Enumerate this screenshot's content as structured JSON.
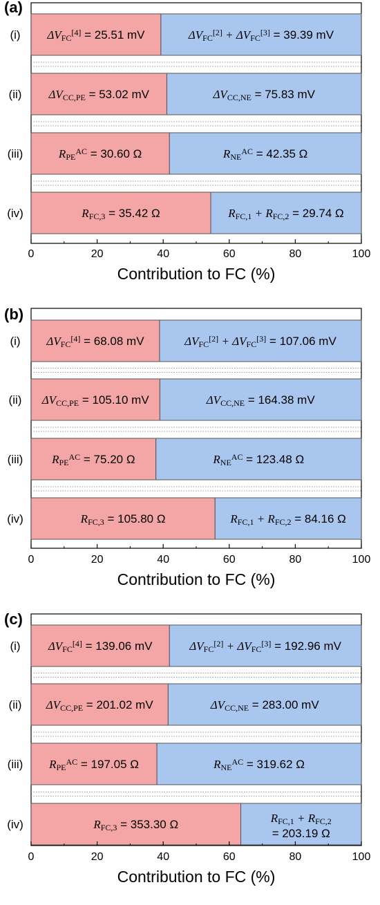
{
  "chart_data": [
    {
      "type": "bar",
      "panel": "(a)",
      "orientation": "horizontal-stacked",
      "categories": [
        "(i)",
        "(ii)",
        "(iii)",
        "(iv)"
      ],
      "xlabel": "Contribution to FC (%)",
      "xlim": [
        0,
        100
      ],
      "xticks": [
        "0",
        "20",
        "40",
        "60",
        "80",
        "100"
      ],
      "colors": {
        "first": "#f4a6a6",
        "second": "#a9c6ee"
      },
      "rows": [
        {
          "first": 39.3,
          "second": 60.7,
          "first_label": [
            [
              "t",
              "ΔV"
            ],
            [
              "sub",
              "FC"
            ],
            [
              "sup",
              "[4]"
            ],
            [
              "t",
              " = 25.51 mV"
            ]
          ],
          "second_label": [
            [
              "t",
              "ΔV"
            ],
            [
              "sub",
              "FC"
            ],
            [
              "sup",
              "[2]"
            ],
            [
              "t",
              " + ΔV"
            ],
            [
              "sub",
              "FC"
            ],
            [
              "sup",
              "[3]"
            ],
            [
              "t",
              " = 39.39 mV"
            ]
          ]
        },
        {
          "first": 41.1,
          "second": 58.9,
          "first_label": [
            [
              "t",
              "ΔV"
            ],
            [
              "sub",
              "CC,PE"
            ],
            [
              "t",
              " = 53.02 mV"
            ]
          ],
          "second_label": [
            [
              "t",
              "ΔV"
            ],
            [
              "sub",
              "CC,NE"
            ],
            [
              "t",
              " = 75.83 mV"
            ]
          ]
        },
        {
          "first": 41.9,
          "second": 58.1,
          "first_label": [
            [
              "t",
              "R"
            ],
            [
              "sub",
              "PE"
            ],
            [
              "sup",
              "AC"
            ],
            [
              "t",
              " = 30.60 Ω"
            ]
          ],
          "second_label": [
            [
              "t",
              "R"
            ],
            [
              "sub",
              "NE"
            ],
            [
              "sup",
              "AC"
            ],
            [
              "t",
              " = 42.35 Ω"
            ]
          ]
        },
        {
          "first": 54.4,
          "second": 45.6,
          "first_label": [
            [
              "t",
              "R"
            ],
            [
              "sub",
              "FC,3"
            ],
            [
              "t",
              " = 35.42 Ω"
            ]
          ],
          "second_label": [
            [
              "t",
              "R"
            ],
            [
              "sub",
              "FC,1"
            ],
            [
              "t",
              " + R"
            ],
            [
              "sub",
              "FC,2"
            ],
            [
              "t",
              " = 29.74 Ω"
            ]
          ]
        }
      ]
    },
    {
      "type": "bar",
      "panel": "(b)",
      "orientation": "horizontal-stacked",
      "categories": [
        "(i)",
        "(ii)",
        "(iii)",
        "(iv)"
      ],
      "xlabel": "Contribution to FC (%)",
      "xlim": [
        0,
        100
      ],
      "xticks": [
        "0",
        "20",
        "40",
        "60",
        "80",
        "100"
      ],
      "colors": {
        "first": "#f4a6a6",
        "second": "#a9c6ee"
      },
      "rows": [
        {
          "first": 38.9,
          "second": 61.1,
          "first_label": [
            [
              "t",
              "ΔV"
            ],
            [
              "sub",
              "FC"
            ],
            [
              "sup",
              "[4]"
            ],
            [
              "t",
              " = 68.08 mV"
            ]
          ],
          "second_label": [
            [
              "t",
              "ΔV"
            ],
            [
              "sub",
              "FC"
            ],
            [
              "sup",
              "[2]"
            ],
            [
              "t",
              " + ΔV"
            ],
            [
              "sub",
              "FC"
            ],
            [
              "sup",
              "[3]"
            ],
            [
              "t",
              " = 107.06 mV"
            ]
          ]
        },
        {
          "first": 39.0,
          "second": 61.0,
          "first_label": [
            [
              "t",
              "ΔV"
            ],
            [
              "sub",
              "CC,PE"
            ],
            [
              "t",
              " = 105.10 mV"
            ]
          ],
          "second_label": [
            [
              "t",
              "ΔV"
            ],
            [
              "sub",
              "CC,NE"
            ],
            [
              "t",
              " = 164.38 mV"
            ]
          ]
        },
        {
          "first": 37.8,
          "second": 62.2,
          "first_label": [
            [
              "t",
              "R"
            ],
            [
              "sub",
              "PE"
            ],
            [
              "sup",
              "AC"
            ],
            [
              "t",
              " = 75.20 Ω"
            ]
          ],
          "second_label": [
            [
              "t",
              "R"
            ],
            [
              "sub",
              "NE"
            ],
            [
              "sup",
              "AC"
            ],
            [
              "t",
              " = 123.48 Ω"
            ]
          ]
        },
        {
          "first": 55.7,
          "second": 44.3,
          "first_label": [
            [
              "t",
              "R"
            ],
            [
              "sub",
              "FC,3"
            ],
            [
              "t",
              " = 105.80 Ω"
            ]
          ],
          "second_label": [
            [
              "t",
              "R"
            ],
            [
              "sub",
              "FC,1"
            ],
            [
              "t",
              " + R"
            ],
            [
              "sub",
              "FC,2"
            ],
            [
              "t",
              " = 84.16 Ω"
            ]
          ]
        }
      ]
    },
    {
      "type": "bar",
      "panel": "(c)",
      "orientation": "horizontal-stacked",
      "categories": [
        "(i)",
        "(ii)",
        "(iii)",
        "(iv)"
      ],
      "xlabel": "Contribution to FC (%)",
      "xlim": [
        0,
        100
      ],
      "xticks": [
        "0",
        "20",
        "40",
        "60",
        "80",
        "100"
      ],
      "colors": {
        "first": "#f4a6a6",
        "second": "#a9c6ee"
      },
      "rows": [
        {
          "first": 41.9,
          "second": 58.1,
          "first_label": [
            [
              "t",
              "ΔV"
            ],
            [
              "sub",
              "FC"
            ],
            [
              "sup",
              "[4]"
            ],
            [
              "t",
              " = 139.06 mV"
            ]
          ],
          "second_label": [
            [
              "t",
              "ΔV"
            ],
            [
              "sub",
              "FC"
            ],
            [
              "sup",
              "[2]"
            ],
            [
              "t",
              " + ΔV"
            ],
            [
              "sub",
              "FC"
            ],
            [
              "sup",
              "[3]"
            ],
            [
              "t",
              " = 192.96 mV"
            ]
          ]
        },
        {
          "first": 41.5,
          "second": 58.5,
          "first_label": [
            [
              "t",
              "ΔV"
            ],
            [
              "sub",
              "CC,PE"
            ],
            [
              "t",
              " = 201.02 mV"
            ]
          ],
          "second_label": [
            [
              "t",
              "ΔV"
            ],
            [
              "sub",
              "CC,NE"
            ],
            [
              "t",
              " = 283.00 mV"
            ]
          ]
        },
        {
          "first": 38.1,
          "second": 61.9,
          "first_label": [
            [
              "t",
              "R"
            ],
            [
              "sub",
              "PE"
            ],
            [
              "sup",
              "AC"
            ],
            [
              "t",
              " = 197.05 Ω"
            ]
          ],
          "second_label": [
            [
              "t",
              "R"
            ],
            [
              "sub",
              "NE"
            ],
            [
              "sup",
              "AC"
            ],
            [
              "t",
              " = 319.62 Ω"
            ]
          ]
        },
        {
          "first": 63.5,
          "second": 36.5,
          "first_label": [
            [
              "t",
              "R"
            ],
            [
              "sub",
              "FC,3"
            ],
            [
              "t",
              " = 353.30 Ω"
            ]
          ],
          "second_label": [
            [
              "t",
              "R"
            ],
            [
              "sub",
              "FC,1"
            ],
            [
              "t",
              " + R"
            ],
            [
              "sub",
              "FC,2"
            ]
          ],
          "second_label_line2": [
            [
              "t",
              "= 203.19 Ω"
            ]
          ]
        }
      ]
    }
  ]
}
